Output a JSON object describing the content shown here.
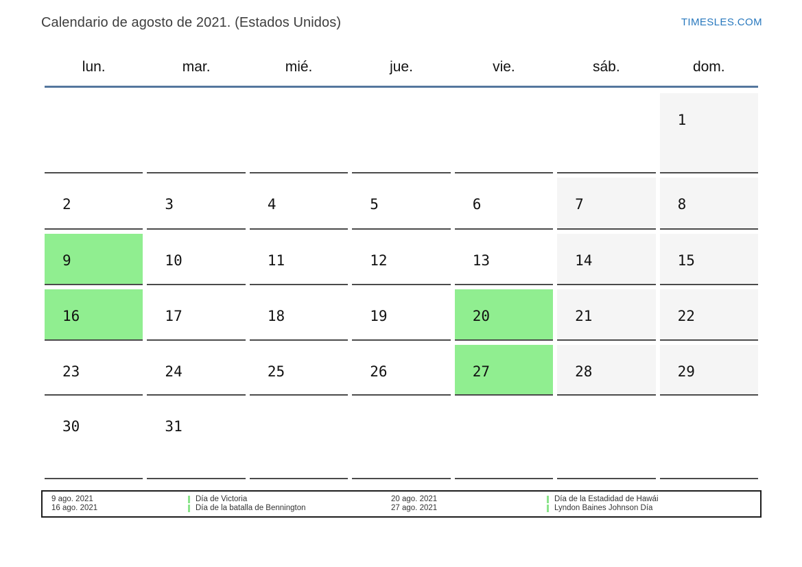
{
  "header": {
    "title": "Calendario de agosto de 2021. (Estados Unidos)",
    "brand": "TIMESLES.COM"
  },
  "colors": {
    "brand_blue": "#2878be",
    "header_line_blue": "#54779e",
    "holiday_green": "#90ee90",
    "weekend_gray": "#f5f5f5",
    "grid_line_gray": "#4a4a4a",
    "legend_marker_green": "#8be48b",
    "legend_border": "#1c1c1c"
  },
  "calendar": {
    "weekdays": [
      "lun.",
      "mar.",
      "mié.",
      "jue.",
      "vie.",
      "sáb.",
      "dom."
    ],
    "weeks": [
      [
        {
          "label": "",
          "type": "empty"
        },
        {
          "label": "",
          "type": "empty"
        },
        {
          "label": "",
          "type": "empty"
        },
        {
          "label": "",
          "type": "empty"
        },
        {
          "label": "",
          "type": "empty"
        },
        {
          "label": "",
          "type": "empty"
        },
        {
          "label": "1",
          "type": "weekend"
        }
      ],
      [
        {
          "label": "2",
          "type": "normal"
        },
        {
          "label": "3",
          "type": "normal"
        },
        {
          "label": "4",
          "type": "normal"
        },
        {
          "label": "5",
          "type": "normal"
        },
        {
          "label": "6",
          "type": "normal"
        },
        {
          "label": "7",
          "type": "weekend"
        },
        {
          "label": "8",
          "type": "weekend"
        }
      ],
      [
        {
          "label": "9",
          "type": "holiday"
        },
        {
          "label": "10",
          "type": "normal"
        },
        {
          "label": "11",
          "type": "normal"
        },
        {
          "label": "12",
          "type": "normal"
        },
        {
          "label": "13",
          "type": "normal"
        },
        {
          "label": "14",
          "type": "weekend"
        },
        {
          "label": "15",
          "type": "weekend"
        }
      ],
      [
        {
          "label": "16",
          "type": "holiday"
        },
        {
          "label": "17",
          "type": "normal"
        },
        {
          "label": "18",
          "type": "normal"
        },
        {
          "label": "19",
          "type": "normal"
        },
        {
          "label": "20",
          "type": "holiday"
        },
        {
          "label": "21",
          "type": "weekend"
        },
        {
          "label": "22",
          "type": "weekend"
        }
      ],
      [
        {
          "label": "23",
          "type": "normal"
        },
        {
          "label": "24",
          "type": "normal"
        },
        {
          "label": "25",
          "type": "normal"
        },
        {
          "label": "26",
          "type": "normal"
        },
        {
          "label": "27",
          "type": "holiday"
        },
        {
          "label": "28",
          "type": "weekend"
        },
        {
          "label": "29",
          "type": "weekend"
        }
      ],
      [
        {
          "label": "30",
          "type": "normal"
        },
        {
          "label": "31",
          "type": "normal"
        },
        {
          "label": "",
          "type": "empty"
        },
        {
          "label": "",
          "type": "empty"
        },
        {
          "label": "",
          "type": "empty"
        },
        {
          "label": "",
          "type": "empty"
        },
        {
          "label": "",
          "type": "empty"
        }
      ]
    ]
  },
  "legend": {
    "groups": [
      {
        "entries": [
          {
            "date": "9 ago. 2021",
            "name": "Día de Victoria"
          },
          {
            "date": "16 ago. 2021",
            "name": "Día de la batalla de Bennington"
          }
        ]
      },
      {
        "entries": [
          {
            "date": "20 ago. 2021",
            "name": "Día de la Estadidad de Hawái"
          },
          {
            "date": "27 ago. 2021",
            "name": "Lyndon Baines Johnson Día"
          }
        ]
      }
    ]
  }
}
